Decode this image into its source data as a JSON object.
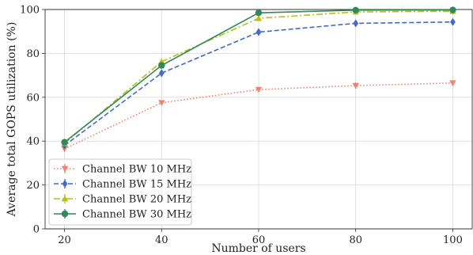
{
  "chart_data": {
    "type": "line",
    "title": "",
    "xlabel": "Number of users",
    "ylabel": "Average total GOPS utilization (%)",
    "x": [
      20,
      40,
      60,
      80,
      100
    ],
    "xlim": [
      16,
      104
    ],
    "ylim": [
      0,
      100
    ],
    "xticks": [
      "20",
      "40",
      "60",
      "80",
      "100"
    ],
    "yticks": [
      "0",
      "20",
      "40",
      "60",
      "80",
      "100"
    ],
    "grid": true,
    "legend_position": "bottom-left",
    "series": [
      {
        "name": "Channel BW 10 MHz",
        "values": [
          36.5,
          57.5,
          63.5,
          65.3,
          66.5
        ],
        "errors": [
          1.2,
          1.0,
          1.0,
          1.4,
          1.2
        ],
        "color": "#fa7f6f",
        "linestyle": "dotted",
        "marker": "triangle-down"
      },
      {
        "name": "Channel BW 15 MHz",
        "values": [
          38.0,
          71.0,
          89.7,
          93.7,
          94.3
        ],
        "errors": [
          1.2,
          1.6,
          1.4,
          1.2,
          1.2
        ],
        "color": "#4169d2",
        "linestyle": "dashed",
        "marker": "diamond"
      },
      {
        "name": "Channel BW 20 MHz",
        "values": [
          39.0,
          76.2,
          96.0,
          98.9,
          99.2
        ],
        "errors": [
          1.0,
          1.4,
          1.0,
          0.8,
          0.7
        ],
        "color": "#b8c20f",
        "linestyle": "dashdot",
        "marker": "triangle-up"
      },
      {
        "name": "Channel BW 30 MHz",
        "values": [
          39.5,
          74.5,
          98.5,
          99.7,
          99.8
        ],
        "errors": [
          1.0,
          1.4,
          0.8,
          0.4,
          0.4
        ],
        "color": "#2e8b57",
        "linestyle": "solid",
        "marker": "circle"
      }
    ]
  }
}
